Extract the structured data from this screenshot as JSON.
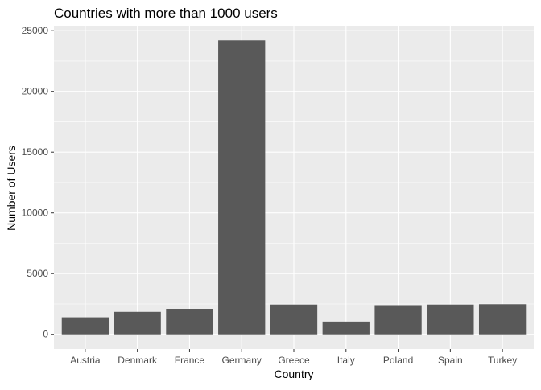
{
  "chart_data": {
    "type": "bar",
    "title": "Countries with more than 1000 users",
    "xlabel": "Country",
    "ylabel": "Number of Users",
    "categories": [
      "Austria",
      "Denmark",
      "France",
      "Germany",
      "Greece",
      "Italy",
      "Poland",
      "Spain",
      "Turkey"
    ],
    "values": [
      1400,
      1850,
      2100,
      24200,
      2450,
      1050,
      2400,
      2450,
      2480
    ],
    "ylim": [
      0,
      25000
    ],
    "yticks": [
      0,
      5000,
      10000,
      15000,
      20000,
      25000
    ],
    "ytick_labels": [
      "0",
      "5000",
      "10000",
      "15000",
      "20000",
      "25000"
    ],
    "grid": true,
    "legend": "none",
    "colors": {
      "panel_background": "#ebebeb",
      "grid_major": "#ffffff",
      "bar_fill": "#595959",
      "tick_text": "#4d4d4d",
      "tick_mark": "#333333"
    }
  }
}
